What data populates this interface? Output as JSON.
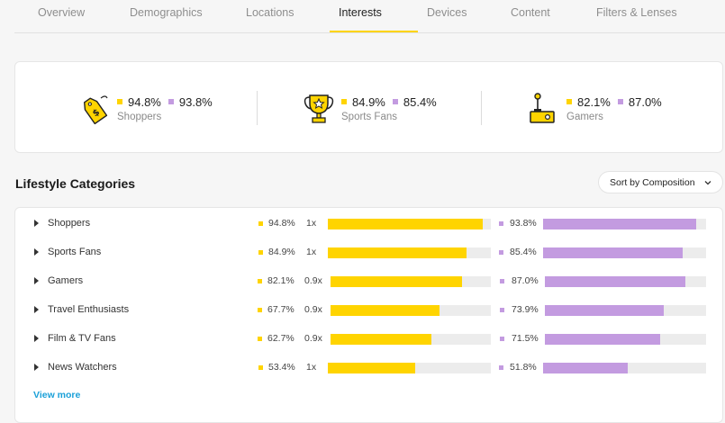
{
  "tabs": [
    {
      "label": "Overview"
    },
    {
      "label": "Demographics"
    },
    {
      "label": "Locations"
    },
    {
      "label": "Interests",
      "active": true
    },
    {
      "label": "Devices"
    },
    {
      "label": "Content"
    },
    {
      "label": "Filters & Lenses"
    }
  ],
  "summary": [
    {
      "icon": "shopping-tag-icon",
      "audience_value": "94.8%",
      "comparison_value": "93.8%",
      "label": "Shoppers"
    },
    {
      "icon": "trophy-icon",
      "audience_value": "84.9%",
      "comparison_value": "85.4%",
      "label": "Sports Fans"
    },
    {
      "icon": "joystick-icon",
      "audience_value": "82.1%",
      "comparison_value": "87.0%",
      "label": "Gamers"
    }
  ],
  "section": {
    "title": "Lifestyle Categories",
    "sort_label": "Sort by Composition"
  },
  "categories": [
    {
      "name": "Shoppers",
      "audience": "94.8%",
      "index": "1x",
      "comparison": "93.8%",
      "audience_pct": 94.8,
      "comparison_pct": 93.8
    },
    {
      "name": "Sports Fans",
      "audience": "84.9%",
      "index": "1x",
      "comparison": "85.4%",
      "audience_pct": 84.9,
      "comparison_pct": 85.4
    },
    {
      "name": "Gamers",
      "audience": "82.1%",
      "index": "0.9x",
      "comparison": "87.0%",
      "audience_pct": 82.1,
      "comparison_pct": 87.0
    },
    {
      "name": "Travel Enthusiasts",
      "audience": "67.7%",
      "index": "0.9x",
      "comparison": "73.9%",
      "audience_pct": 67.7,
      "comparison_pct": 73.9
    },
    {
      "name": "Film & TV Fans",
      "audience": "62.7%",
      "index": "0.9x",
      "comparison": "71.5%",
      "audience_pct": 62.7,
      "comparison_pct": 71.5
    },
    {
      "name": "News Watchers",
      "audience": "53.4%",
      "index": "1x",
      "comparison": "51.8%",
      "audience_pct": 53.4,
      "comparison_pct": 51.8
    }
  ],
  "view_more_label": "View more",
  "colors": {
    "audience": "#ffd400",
    "comparison": "#c39be0",
    "link": "#1aa0d8",
    "tab_underline": "#ffd400"
  }
}
